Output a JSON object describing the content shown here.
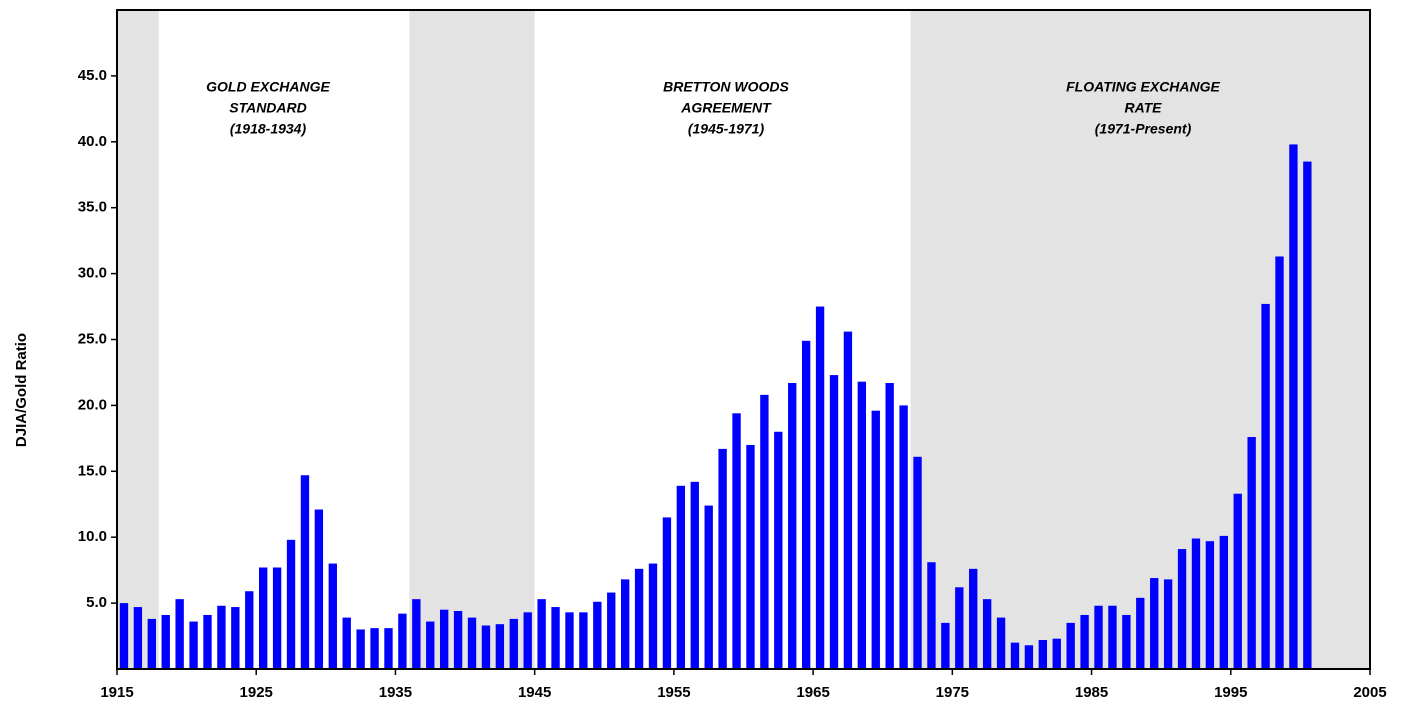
{
  "chart_data": {
    "type": "bar",
    "y_label": "DJIA/Gold Ratio",
    "color": "#0000ff",
    "x": [
      1915,
      1916,
      1917,
      1918,
      1919,
      1920,
      1921,
      1922,
      1923,
      1924,
      1925,
      1926,
      1927,
      1928,
      1929,
      1930,
      1931,
      1932,
      1933,
      1934,
      1935,
      1936,
      1937,
      1938,
      1939,
      1940,
      1941,
      1942,
      1943,
      1944,
      1945,
      1946,
      1947,
      1948,
      1949,
      1950,
      1951,
      1952,
      1953,
      1954,
      1955,
      1956,
      1957,
      1958,
      1959,
      1960,
      1961,
      1962,
      1963,
      1964,
      1965,
      1966,
      1967,
      1968,
      1969,
      1970,
      1971,
      1972,
      1973,
      1974,
      1975,
      1976,
      1977,
      1978,
      1979,
      1980,
      1981,
      1982,
      1983,
      1984,
      1985,
      1986,
      1987,
      1988,
      1989,
      1990,
      1991,
      1992,
      1993,
      1994,
      1995,
      1996,
      1997,
      1998,
      1999,
      2000
    ],
    "values": [
      5.0,
      4.7,
      3.8,
      4.1,
      5.3,
      3.6,
      4.1,
      4.8,
      4.7,
      5.9,
      7.7,
      7.7,
      9.8,
      14.7,
      12.1,
      8.0,
      3.9,
      3.0,
      3.1,
      3.1,
      4.2,
      5.3,
      3.6,
      4.5,
      4.4,
      3.9,
      3.3,
      3.4,
      3.8,
      4.3,
      5.3,
      4.7,
      4.3,
      4.3,
      5.1,
      5.8,
      6.8,
      7.6,
      8.0,
      11.5,
      13.9,
      14.2,
      12.4,
      16.7,
      19.4,
      17.0,
      20.8,
      18.0,
      21.7,
      24.9,
      27.5,
      22.3,
      25.6,
      21.8,
      19.6,
      21.7,
      20.0,
      16.1,
      8.1,
      3.5,
      6.2,
      7.6,
      5.3,
      3.9,
      2.0,
      1.8,
      2.2,
      2.3,
      3.5,
      4.1,
      4.8,
      4.8,
      4.1,
      5.4,
      6.9,
      6.8,
      9.1,
      9.9,
      9.7,
      10.1,
      13.3,
      17.6,
      27.7,
      31.3,
      39.8,
      38.5
    ],
    "xlim": [
      1915,
      2005
    ],
    "xticks": [
      1915,
      1925,
      1935,
      1945,
      1955,
      1965,
      1975,
      1985,
      1995,
      2005
    ],
    "ylim": [
      0,
      50
    ],
    "yticks": [
      {
        "value": 5,
        "label": "5.0"
      },
      {
        "value": 10,
        "label": "10.0"
      },
      {
        "value": 15,
        "label": "15.0"
      },
      {
        "value": 20,
        "label": "20.0"
      },
      {
        "value": 25,
        "label": "25.0"
      },
      {
        "value": 30,
        "label": "30.0"
      },
      {
        "value": 35,
        "label": "35.0"
      },
      {
        "value": 40,
        "label": "40.0"
      },
      {
        "value": 45,
        "label": "45.0"
      }
    ],
    "shaded_regions": [
      [
        1915,
        1918
      ],
      [
        1936,
        1945
      ],
      [
        1972,
        2005
      ]
    ],
    "shade_color": "#e3e3e3",
    "annotations": [
      {
        "lines": [
          "GOLD EXCHANGE",
          "STANDARD",
          "(1918-1934)"
        ]
      },
      {
        "lines": [
          "BRETTON WOODS",
          "AGREEMENT",
          "(1945-1971)"
        ]
      },
      {
        "lines": [
          "FLOATING EXCHANGE",
          "RATE",
          "(1971-Present)"
        ]
      }
    ]
  }
}
